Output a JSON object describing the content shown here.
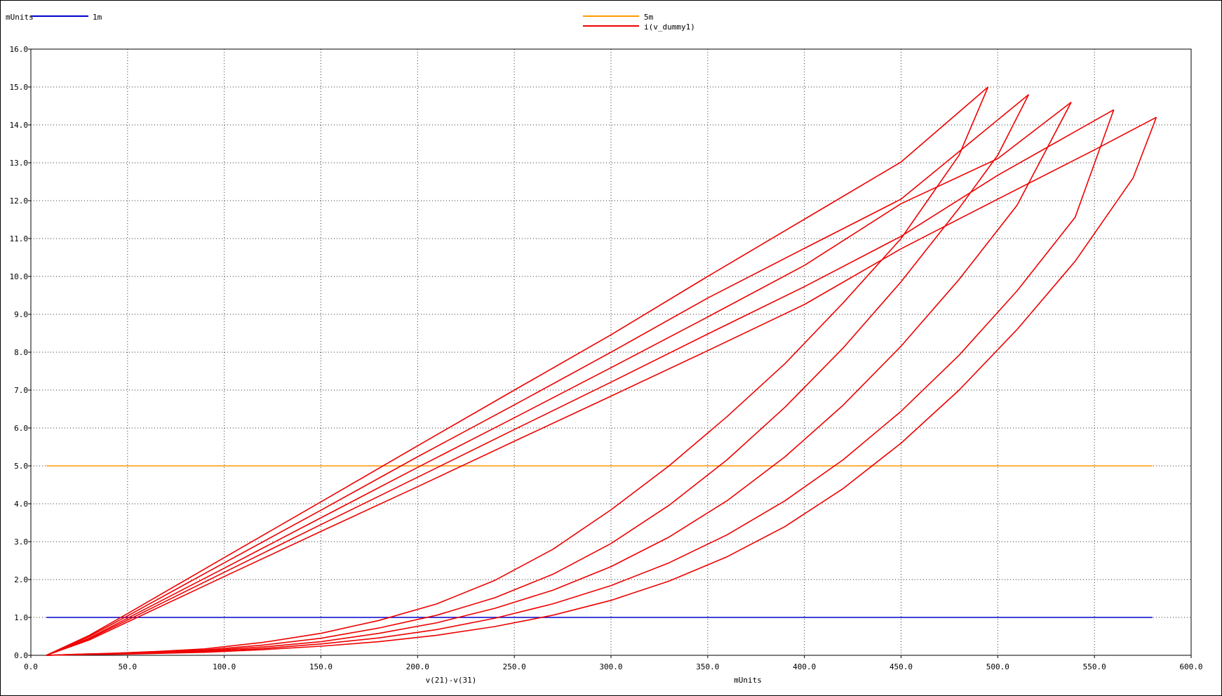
{
  "chart_data": {
    "type": "line",
    "y_unit_label": "mUnits",
    "xlabel": "v(21)-v(31)",
    "x_unit_label": "mUnits",
    "xlim": [
      0,
      600
    ],
    "ylim": [
      0,
      16
    ],
    "x_ticks": [
      "0.0",
      "50.0",
      "100.0",
      "150.0",
      "200.0",
      "250.0",
      "300.0",
      "350.0",
      "400.0",
      "450.0",
      "500.0",
      "550.0",
      "600.0"
    ],
    "y_ticks": [
      "0.0",
      "1.0",
      "2.0",
      "3.0",
      "4.0",
      "5.0",
      "6.0",
      "7.0",
      "8.0",
      "9.0",
      "10.0",
      "11.0",
      "12.0",
      "13.0",
      "14.0",
      "15.0",
      "16.0"
    ],
    "grid": true,
    "series": [
      {
        "name": "1m",
        "color": "#0000cc",
        "x": [
          8,
          580
        ],
        "y": [
          1.0,
          1.0
        ]
      },
      {
        "name": "5m",
        "color": "#ff9900",
        "x": [
          8,
          580
        ],
        "y": [
          5.0,
          5.0
        ]
      },
      {
        "name": "i(v_dummy1)",
        "color": "#ee0000",
        "loops": [
          {
            "peak": [
              495,
              15.0
            ],
            "rise_x": [
              8,
              25,
              45,
              65,
              90,
              120,
              150,
              180,
              210,
              240,
              270,
              300,
              330,
              360,
              390,
              420,
              450,
              480,
              495
            ],
            "rise_y": [
              0.0,
              0.03,
              0.06,
              0.1,
              0.17,
              0.34,
              0.58,
              0.92,
              1.36,
              1.98,
              2.8,
              3.84,
              5.0,
              6.3,
              7.7,
              9.3,
              11.0,
              13.2,
              15.0
            ],
            "fall_x": [
              495,
              450,
              400,
              350,
              300,
              250,
              200,
              150,
              100,
              50,
              30,
              8
            ],
            "fall_y": [
              15.0,
              13.02,
              11.51,
              10.0,
              8.46,
              7.0,
              5.53,
              4.05,
              2.58,
              1.1,
              0.52,
              0.0
            ]
          },
          {
            "peak": [
              516,
              14.8
            ],
            "rise_x": [
              8,
              25,
              45,
              65,
              90,
              120,
              150,
              180,
              210,
              240,
              270,
              300,
              330,
              360,
              390,
              420,
              450,
              480,
              500,
              516
            ],
            "rise_y": [
              0.0,
              0.03,
              0.05,
              0.08,
              0.14,
              0.27,
              0.45,
              0.72,
              1.06,
              1.52,
              2.14,
              2.95,
              3.96,
              5.16,
              6.55,
              8.11,
              9.86,
              11.8,
              13.2,
              14.8
            ],
            "fall_x": [
              516,
              450,
              400,
              350,
              300,
              250,
              200,
              150,
              100,
              50,
              30,
              8
            ],
            "fall_y": [
              14.8,
              12.04,
              10.74,
              9.43,
              8.0,
              6.61,
              5.24,
              3.83,
              2.44,
              1.04,
              0.49,
              0.0
            ]
          },
          {
            "peak": [
              538,
              14.6
            ],
            "rise_x": [
              8,
              25,
              45,
              65,
              90,
              120,
              150,
              180,
              210,
              240,
              270,
              300,
              330,
              360,
              390,
              420,
              450,
              480,
              510,
              538
            ],
            "rise_y": [
              0.0,
              0.02,
              0.04,
              0.07,
              0.12,
              0.22,
              0.36,
              0.58,
              0.86,
              1.24,
              1.72,
              2.34,
              3.12,
              4.08,
              5.24,
              6.6,
              8.16,
              9.92,
              11.88,
              14.6
            ],
            "fall_x": [
              538,
              500,
              450,
              400,
              350,
              300,
              250,
              200,
              150,
              100,
              50,
              30,
              8
            ],
            "fall_y": [
              14.6,
              13.11,
              11.92,
              10.29,
              8.93,
              7.59,
              6.27,
              4.96,
              3.63,
              2.3,
              0.98,
              0.45,
              0.0
            ]
          },
          {
            "peak": [
              560,
              14.4
            ],
            "rise_x": [
              8,
              25,
              45,
              65,
              90,
              120,
              150,
              180,
              210,
              240,
              270,
              300,
              330,
              360,
              390,
              420,
              450,
              480,
              510,
              540,
              560
            ],
            "rise_y": [
              0.0,
              0.02,
              0.04,
              0.06,
              0.1,
              0.18,
              0.3,
              0.46,
              0.68,
              0.98,
              1.36,
              1.84,
              2.44,
              3.18,
              4.08,
              5.16,
              6.44,
              7.92,
              9.62,
              11.56,
              14.4
            ],
            "fall_x": [
              560,
              500,
              450,
              400,
              350,
              300,
              250,
              200,
              150,
              100,
              50,
              30,
              8
            ],
            "fall_y": [
              14.4,
              12.67,
              11.06,
              9.73,
              8.48,
              7.21,
              5.96,
              4.7,
              3.45,
              2.19,
              0.93,
              0.43,
              0.0
            ]
          },
          {
            "peak": [
              582,
              14.2
            ],
            "rise_x": [
              8,
              25,
              45,
              65,
              90,
              120,
              150,
              180,
              210,
              240,
              270,
              300,
              330,
              360,
              390,
              420,
              450,
              480,
              510,
              540,
              570,
              582
            ],
            "rise_y": [
              0.0,
              0.02,
              0.03,
              0.05,
              0.08,
              0.15,
              0.24,
              0.36,
              0.53,
              0.76,
              1.06,
              1.45,
              1.96,
              2.6,
              3.4,
              4.4,
              5.6,
              7.0,
              8.6,
              10.4,
              12.6,
              14.2
            ],
            "fall_x": [
              582,
              550,
              500,
              450,
              400,
              350,
              300,
              250,
              200,
              150,
              100,
              50,
              30,
              8
            ],
            "fall_y": [
              14.2,
              13.34,
              12.04,
              10.73,
              9.26,
              8.04,
              6.84,
              5.65,
              4.45,
              3.27,
              2.08,
              0.88,
              0.4,
              0.0
            ]
          }
        ]
      }
    ]
  }
}
